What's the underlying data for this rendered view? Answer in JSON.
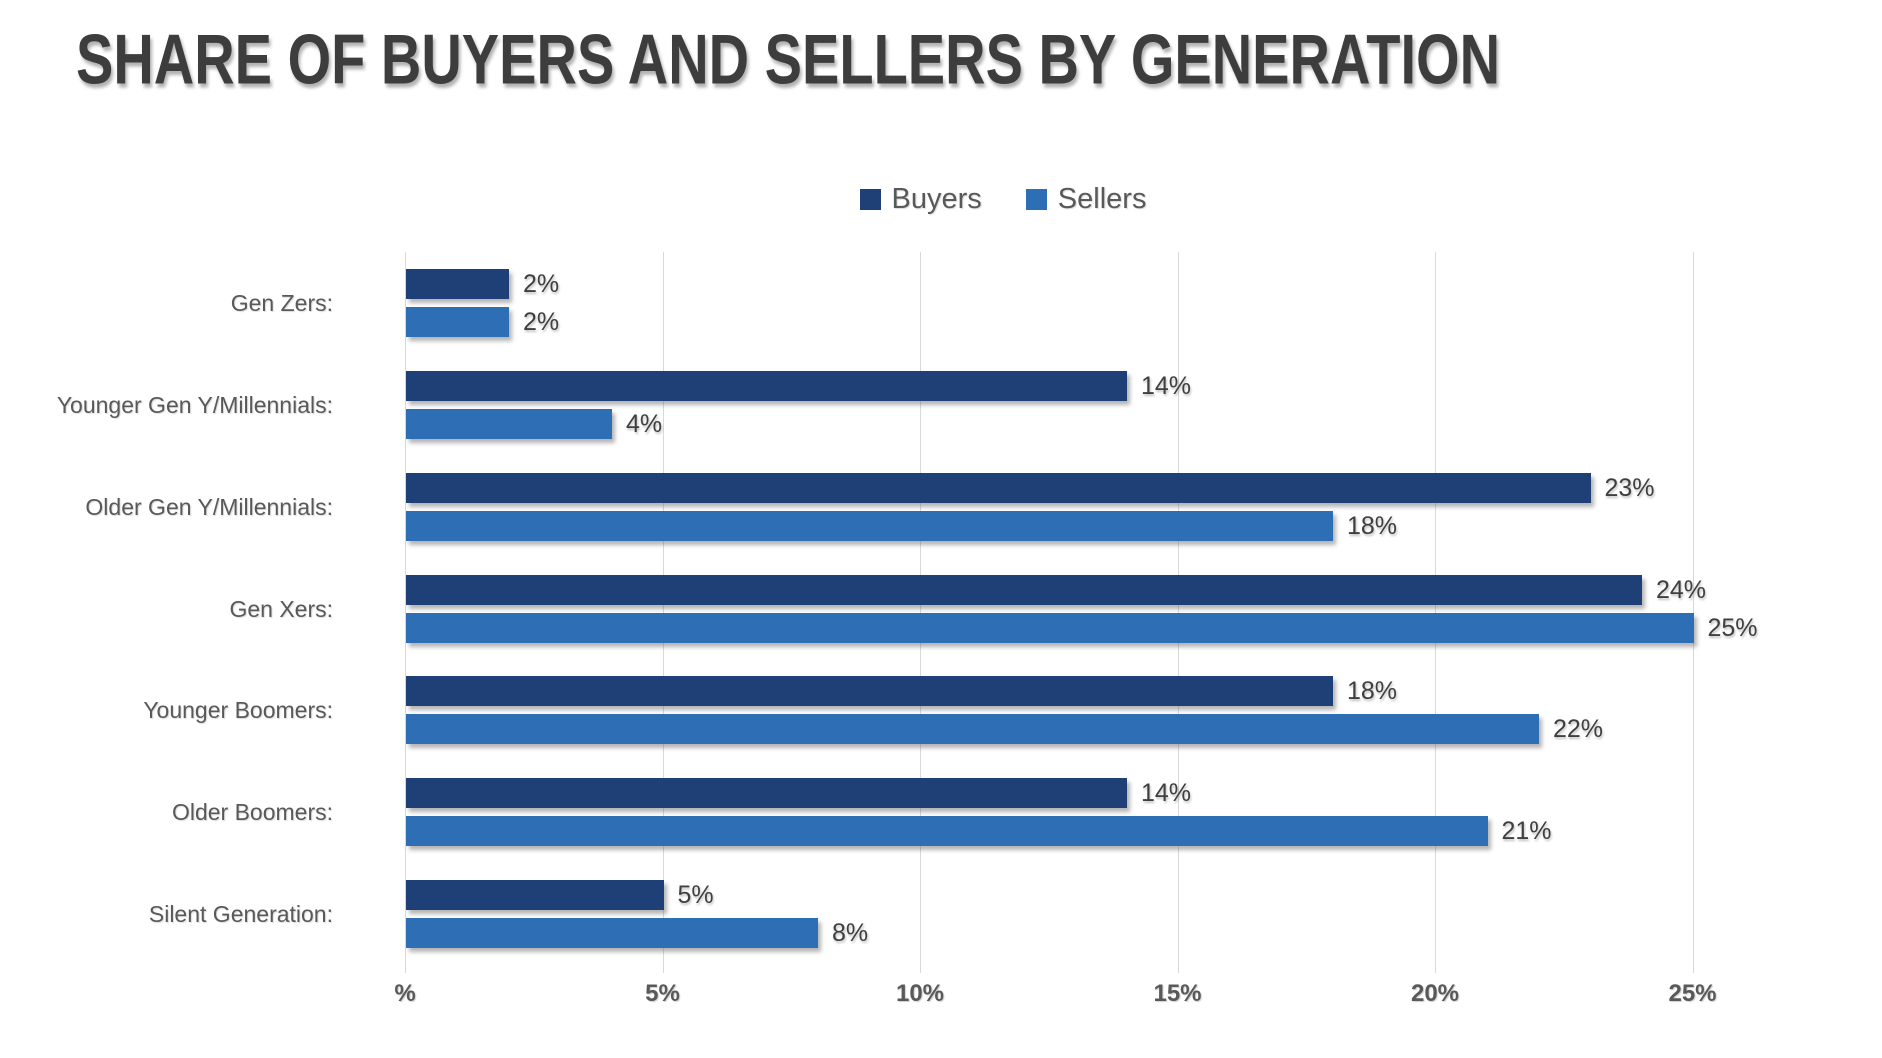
{
  "title": "SHARE OF BUYERS AND SELLERS BY GENERATION",
  "legend": [
    {
      "label": "Buyers",
      "color": "#1e4077"
    },
    {
      "label": "Sellers",
      "color": "#2e6eb5"
    }
  ],
  "chart_data": {
    "type": "bar",
    "orientation": "horizontal",
    "title": "SHARE OF BUYERS AND SELLERS BY GENERATION",
    "categories": [
      "Gen Zers:",
      "Younger Gen Y/Millennials:",
      "Older Gen Y/Millennials:",
      "Gen Xers:",
      "Younger Boomers:",
      "Older Boomers:",
      "Silent Generation:"
    ],
    "series": [
      {
        "name": "Buyers",
        "color": "#1e4077",
        "values": [
          2,
          14,
          23,
          24,
          18,
          14,
          5
        ],
        "labels": [
          "2%",
          "14%",
          "23%",
          "24%",
          "18%",
          "14%",
          "5%"
        ]
      },
      {
        "name": "Sellers",
        "color": "#2e6eb5",
        "values": [
          2,
          4,
          18,
          25,
          22,
          21,
          8
        ],
        "labels": [
          "2%",
          "4%",
          "18%",
          "25%",
          "22%",
          "21%",
          "8%"
        ]
      }
    ],
    "xlim": [
      0,
      25
    ],
    "x_tick_labels": [
      "%",
      "5%",
      "10%",
      "15%",
      "20%",
      "25%"
    ],
    "x_tick_values": [
      0,
      5,
      10,
      15,
      20,
      25
    ],
    "grid": true,
    "legend_position": "top-center",
    "gridline_color": "#d9d9d9"
  }
}
